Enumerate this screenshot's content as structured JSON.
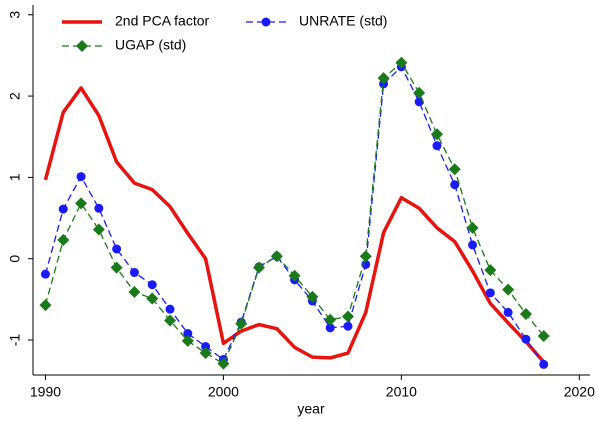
{
  "chart_data": {
    "type": "line",
    "xlabel": "year",
    "x": [
      1990,
      1991,
      1992,
      1993,
      1994,
      1995,
      1996,
      1997,
      1998,
      1999,
      2000,
      2001,
      2002,
      2003,
      2004,
      2005,
      2006,
      2007,
      2008,
      2009,
      2010,
      2011,
      2012,
      2013,
      2014,
      2015,
      2016,
      2017,
      2018
    ],
    "series": [
      {
        "name": "2nd PCA factor",
        "color": "#e8120f",
        "dashed": false,
        "marker": "none",
        "values": [
          0.97,
          1.8,
          2.1,
          1.76,
          1.19,
          0.93,
          0.85,
          0.64,
          0.31,
          0.0,
          -1.04,
          -0.89,
          -0.81,
          -0.86,
          -1.09,
          -1.21,
          -1.22,
          -1.16,
          -0.66,
          0.32,
          0.75,
          0.62,
          0.38,
          0.21,
          -0.15,
          -0.55,
          -0.79,
          -1.02,
          -1.27
        ]
      },
      {
        "name": "UNRATE (std)",
        "color": "#1a1aff",
        "dashed": true,
        "marker": "circle",
        "values": [
          -0.19,
          0.61,
          1.01,
          0.62,
          0.12,
          -0.17,
          -0.32,
          -0.62,
          -0.92,
          -1.08,
          -1.24,
          -0.78,
          -0.1,
          0.03,
          -0.26,
          -0.52,
          -0.85,
          -0.83,
          -0.07,
          2.15,
          2.36,
          1.93,
          1.39,
          0.91,
          0.17,
          -0.42,
          -0.66,
          -0.99,
          -1.3
        ]
      },
      {
        "name": "UGAP (std)",
        "color": "#1a7a1a",
        "dashed": true,
        "marker": "diamond",
        "values": [
          -0.57,
          0.23,
          0.68,
          0.36,
          -0.11,
          -0.41,
          -0.49,
          -0.76,
          -1.01,
          -1.16,
          -1.29,
          -0.8,
          -0.11,
          0.03,
          -0.21,
          -0.47,
          -0.75,
          -0.71,
          0.03,
          2.22,
          2.41,
          2.04,
          1.53,
          1.1,
          0.38,
          -0.14,
          -0.38,
          -0.68,
          -0.95
        ]
      }
    ],
    "xlim": [
      1989.3,
      2020.6
    ],
    "xticks": [
      1990,
      2000,
      2010,
      2020
    ],
    "ylim": [
      -1.43,
      3.12
    ],
    "yticks": [
      -1,
      0,
      1,
      2,
      3
    ],
    "grid": false,
    "legend_position": "upper left"
  }
}
